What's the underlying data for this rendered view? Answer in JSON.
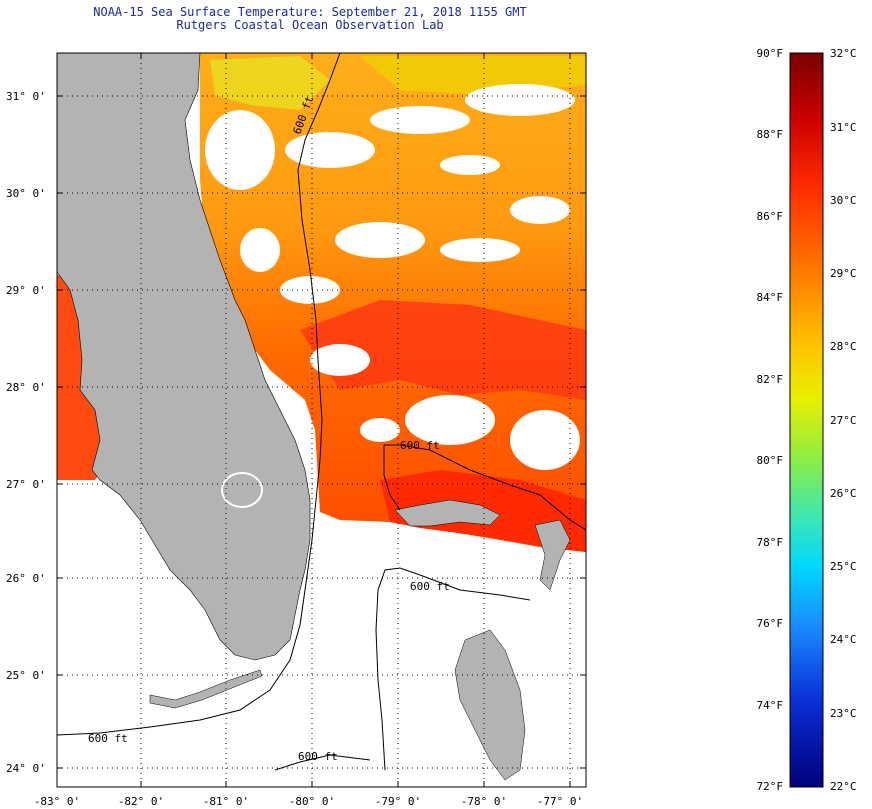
{
  "header": {
    "title": "NOAA-15 Sea Surface Temperature:  September 21, 2018 1155 GMT",
    "subtitle": "Rutgers Coastal Ocean Observation Lab"
  },
  "map": {
    "lat_labels": [
      "31° 0'",
      "30° 0'",
      "29° 0'",
      "28° 0'",
      "27° 0'",
      "26° 0'",
      "25° 0'",
      "24° 0'"
    ],
    "lon_labels": [
      "-83° 0'",
      "-82° 0'",
      "-81° 0'",
      "-80° 0'",
      "-79° 0'",
      "-78° 0'",
      "-77° 0'"
    ],
    "contour_labels": [
      "600 ft",
      "600 ft",
      "600 ft",
      "600 ft",
      "600 ft"
    ]
  },
  "colorbar": {
    "fahrenheit_labels": [
      "90°F",
      "88°F",
      "86°F",
      "84°F",
      "82°F",
      "80°F",
      "78°F",
      "76°F",
      "74°F",
      "72°F"
    ],
    "celsius_labels": [
      "32°C",
      "31°C",
      "30°C",
      "29°C",
      "28°C",
      "27°C",
      "26°C",
      "25°C",
      "24°C",
      "23°C",
      "22°C"
    ],
    "gradient_stops": [
      "#7a0000",
      "#cc0000",
      "#ff2a00",
      "#ff7a00",
      "#ffc400",
      "#e8f000",
      "#90ee40",
      "#3fe8b0",
      "#00d8ff",
      "#1a8cff",
      "#0a30d8",
      "#00007a"
    ]
  },
  "colors": {
    "land": "#b3b3b3",
    "warm": "#ff8a00",
    "hot": "#ff3a00",
    "cloud": "#ffffff"
  }
}
